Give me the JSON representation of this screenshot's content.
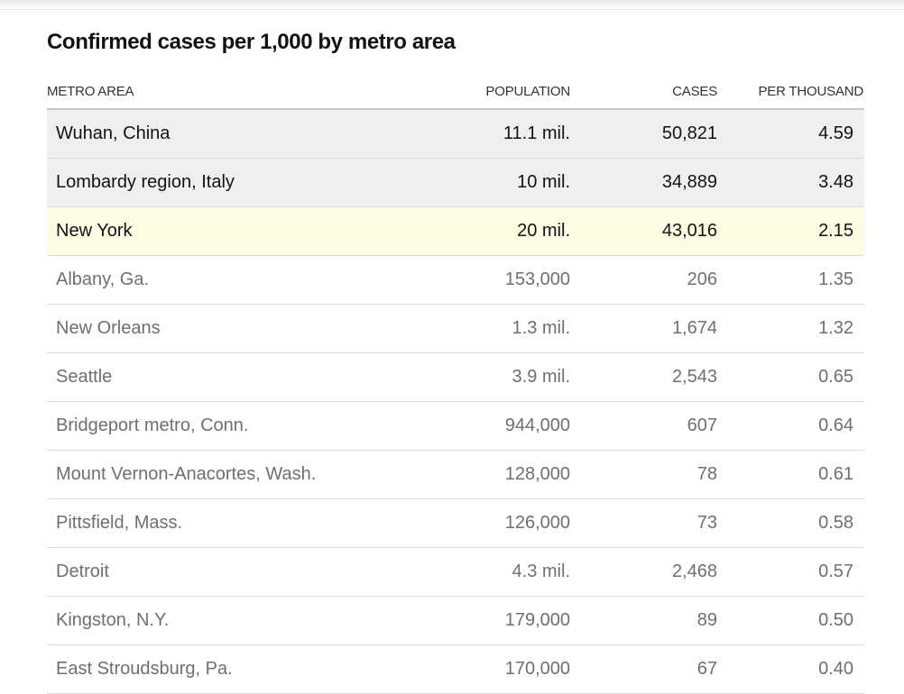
{
  "chart_data": {
    "type": "table",
    "title": "Confirmed cases per 1,000 by metro area",
    "columns": [
      "METRO AREA",
      "POPULATION",
      "CASES",
      "PER THOUSAND"
    ],
    "rows": [
      {
        "metro": "Wuhan, China",
        "population": "11.1 mil.",
        "cases": "50,821",
        "per_thousand": "4.59",
        "highlight": "gray"
      },
      {
        "metro": "Lombardy region, Italy",
        "population": "10 mil.",
        "cases": "34,889",
        "per_thousand": "3.48",
        "highlight": "gray"
      },
      {
        "metro": "New York",
        "population": "20 mil.",
        "cases": "43,016",
        "per_thousand": "2.15",
        "highlight": "yellow"
      },
      {
        "metro": "Albany, Ga.",
        "population": "153,000",
        "cases": "206",
        "per_thousand": "1.35",
        "highlight": "none"
      },
      {
        "metro": "New Orleans",
        "population": "1.3 mil.",
        "cases": "1,674",
        "per_thousand": "1.32",
        "highlight": "none"
      },
      {
        "metro": "Seattle",
        "population": "3.9 mil.",
        "cases": "2,543",
        "per_thousand": "0.65",
        "highlight": "none"
      },
      {
        "metro": "Bridgeport metro, Conn.",
        "population": "944,000",
        "cases": "607",
        "per_thousand": "0.64",
        "highlight": "none"
      },
      {
        "metro": "Mount Vernon-Anacortes, Wash.",
        "population": "128,000",
        "cases": "78",
        "per_thousand": "0.61",
        "highlight": "none"
      },
      {
        "metro": "Pittsfield, Mass.",
        "population": "126,000",
        "cases": "73",
        "per_thousand": "0.58",
        "highlight": "none"
      },
      {
        "metro": "Detroit",
        "population": "4.3 mil.",
        "cases": "2,468",
        "per_thousand": "0.57",
        "highlight": "none"
      },
      {
        "metro": "Kingston, N.Y.",
        "population": "179,000",
        "cases": "89",
        "per_thousand": "0.50",
        "highlight": "none"
      },
      {
        "metro": "East Stroudsburg, Pa.",
        "population": "170,000",
        "cases": "67",
        "per_thousand": "0.40",
        "highlight": "none"
      }
    ]
  },
  "colors": {
    "highlight_gray": "#efefef",
    "highlight_yellow": "#fdfce3",
    "text_dark": "#121212",
    "text_muted": "#6f6f6f"
  }
}
